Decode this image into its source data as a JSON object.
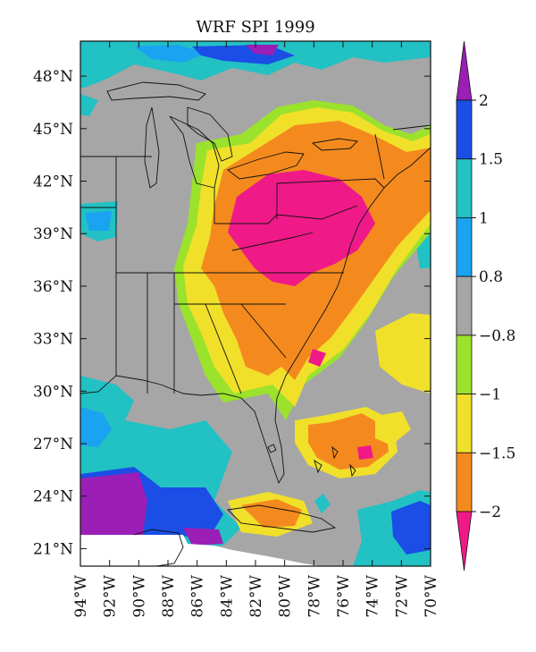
{
  "map": {
    "title": "WRF SPI 1999",
    "lat_labels": [
      "48°N",
      "45°N",
      "42°N",
      "39°N",
      "36°N",
      "33°N",
      "30°N",
      "27°N",
      "24°N",
      "21°N"
    ],
    "lon_labels": [
      "94°W",
      "92°W",
      "90°W",
      "88°W",
      "86°W",
      "84°W",
      "82°W",
      "80°W",
      "78°W",
      "76°W",
      "74°W",
      "72°W",
      "70°W"
    ],
    "lat_range": [
      20,
      50
    ],
    "lon_range": [
      -94,
      -70
    ]
  },
  "colorbar": {
    "labels": [
      "2",
      "1.5",
      "1",
      "0.8",
      "−0.8",
      "−1",
      "−1.5",
      "−2"
    ],
    "levels": [
      {
        "range": "> 2",
        "color": "#9b1fb6"
      },
      {
        "range": "1.5 – 2",
        "color": "#1a4ee6"
      },
      {
        "range": "1 – 1.5",
        "color": "#22c1c3"
      },
      {
        "range": "0.8 – 1",
        "color": "#1aa3f0"
      },
      {
        "range": "−0.8 – 0.8",
        "color": "#a6a6a6"
      },
      {
        "range": "−1 – −0.8",
        "color": "#9be22c"
      },
      {
        "range": "−1.5 – −1",
        "color": "#f0e02a"
      },
      {
        "range": "−2 – −1.5",
        "color": "#f48a1e"
      },
      {
        "range": "< −2",
        "color": "#ef1a88"
      }
    ]
  },
  "colors": {
    "neutral": "#a6a6a6",
    "dry_extreme": "#ef1a88",
    "wet_extreme": "#9b1fb6"
  }
}
